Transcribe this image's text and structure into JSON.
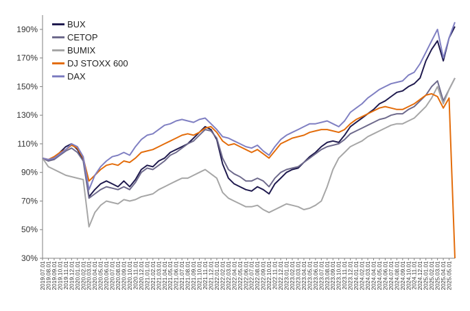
{
  "chart_data": {
    "type": "line",
    "title": "",
    "xlabel": "",
    "ylabel": "",
    "ylim": [
      30,
      200
    ],
    "y_tick_values": [
      30,
      50,
      70,
      90,
      110,
      130,
      150,
      170,
      190
    ],
    "y_tick_format": "{v}%",
    "x_tick_labels": [
      "2019.07.01",
      "2019.08.01",
      "2019.09.01",
      "2019.10.01",
      "2019.11.01",
      "2019.12.01",
      "2020.01.01",
      "2020.02.01",
      "2020.03.01",
      "2020.04.01",
      "2020.05.01",
      "2020.06.01",
      "2020.07.01",
      "2020.08.01",
      "2020.09.01",
      "2020.10.01",
      "2020.11.01",
      "2020.12.01",
      "2021.01.01",
      "2021.02.01",
      "2021.03.01",
      "2021.04.01",
      "2021.05.01",
      "2021.06.01",
      "2021.07.01",
      "2021.08.01",
      "2021.09.01",
      "2021.10.01",
      "2021.11.01",
      "2021.12.01",
      "2022.01.01",
      "2022.02.01",
      "2022.03.01",
      "2022.04.01",
      "2022.05.01",
      "2022.06.01",
      "2022.07.01",
      "2022.08.01",
      "2022.09.01",
      "2022.10.01",
      "2022.11.01",
      "2022.12.01",
      "2023.01.01",
      "2023.02.01",
      "2023.03.01",
      "2023.04.01",
      "2023.05.01",
      "2023.06.01",
      "2023.07.01",
      "2023.08.01",
      "2023.09.01",
      "2023.10.01",
      "2023.11.01",
      "2023.12.01",
      "2024.01.01",
      "2024.02.01",
      "2024.03.01",
      "2024.04.01",
      "2024.05.01",
      "2024.06.01",
      "2024.07.01",
      "2024.08.01",
      "2024.09.01",
      "2024.10.01",
      "2024.11.01",
      "2024.12.01",
      "2025.01.01",
      "2025.02.01",
      "2025.03.01",
      "2025.04.01",
      "2025.05.01"
    ],
    "x": [
      "2019.07.01",
      "2019.08.01",
      "2019.09.01",
      "2019.10.01",
      "2019.11.01",
      "2019.12.01",
      "2020.01.01",
      "2020.02.01",
      "2020.03.01",
      "2020.04.01",
      "2020.05.01",
      "2020.06.01",
      "2020.07.01",
      "2020.08.01",
      "2020.09.01",
      "2020.10.01",
      "2020.11.01",
      "2020.12.01",
      "2021.01.01",
      "2021.02.01",
      "2021.03.01",
      "2021.04.01",
      "2021.05.01",
      "2021.06.01",
      "2021.07.01",
      "2021.08.01",
      "2021.09.01",
      "2021.10.01",
      "2021.11.01",
      "2021.12.01",
      "2022.01.01",
      "2022.02.01",
      "2022.03.01",
      "2022.04.01",
      "2022.05.01",
      "2022.06.01",
      "2022.07.01",
      "2022.08.01",
      "2022.09.01",
      "2022.10.01",
      "2022.11.01",
      "2022.12.01",
      "2023.01.01",
      "2023.02.01",
      "2023.03.01",
      "2023.04.01",
      "2023.05.01",
      "2023.06.01",
      "2023.07.01",
      "2023.08.01",
      "2023.09.01",
      "2023.10.01",
      "2023.11.01",
      "2023.12.01",
      "2024.01.01",
      "2024.02.01",
      "2024.03.01",
      "2024.04.01",
      "2024.05.01",
      "2024.06.01",
      "2024.07.01",
      "2024.08.01",
      "2024.09.01",
      "2024.10.01",
      "2024.11.01",
      "2024.12.01",
      "2025.01.01",
      "2025.02.01",
      "2025.03.01",
      "2025.04.01",
      "2025.05.01",
      "2025.06.01"
    ],
    "grid": false,
    "legend_position": "top-left",
    "series": [
      {
        "name": "BUX",
        "color": "#1f1a4e",
        "values": [
          100,
          98,
          100,
          104,
          108,
          110,
          106,
          99,
          73,
          78,
          82,
          84,
          82,
          80,
          84,
          80,
          85,
          92,
          95,
          94,
          98,
          100,
          104,
          106,
          108,
          110,
          114,
          118,
          122,
          120,
          113,
          96,
          86,
          82,
          80,
          78,
          77,
          80,
          78,
          75,
          82,
          86,
          90,
          92,
          93,
          97,
          101,
          104,
          108,
          111,
          112,
          111,
          116,
          122,
          125,
          128,
          131,
          134,
          138,
          140,
          143,
          146,
          147,
          150,
          152,
          156,
          168,
          176,
          182,
          168,
          184,
          192
        ]
      },
      {
        "name": "CETOP",
        "color": "#6e6a8c",
        "values": [
          100,
          98,
          99,
          102,
          105,
          107,
          104,
          98,
          72,
          75,
          78,
          80,
          79,
          78,
          80,
          78,
          83,
          90,
          93,
          92,
          95,
          98,
          102,
          104,
          107,
          110,
          112,
          116,
          120,
          119,
          114,
          100,
          92,
          89,
          87,
          84,
          84,
          86,
          84,
          80,
          86,
          90,
          92,
          93,
          94,
          97,
          100,
          103,
          106,
          108,
          109,
          110,
          113,
          117,
          119,
          121,
          123,
          125,
          127,
          128,
          130,
          131,
          131,
          134,
          136,
          140,
          144,
          150,
          154,
          140,
          148,
          156
        ]
      },
      {
        "name": "BUMIX",
        "color": "#a6a6a6",
        "values": [
          100,
          94,
          92,
          90,
          88,
          87,
          86,
          85,
          52,
          62,
          67,
          70,
          69,
          68,
          71,
          70,
          71,
          73,
          74,
          75,
          78,
          80,
          82,
          84,
          86,
          86,
          88,
          90,
          92,
          89,
          86,
          76,
          72,
          70,
          68,
          66,
          66,
          67,
          64,
          62,
          64,
          66,
          68,
          67,
          66,
          64,
          65,
          67,
          70,
          80,
          92,
          100,
          104,
          108,
          110,
          112,
          115,
          117,
          119,
          121,
          123,
          124,
          124,
          126,
          128,
          132,
          136,
          142,
          150,
          138,
          148,
          156
        ]
      },
      {
        "name": "DJ STOXX 600",
        "color": "#e36c0a",
        "values": [
          100,
          99,
          101,
          104,
          106,
          109,
          107,
          100,
          84,
          88,
          92,
          95,
          96,
          95,
          98,
          97,
          100,
          104,
          105,
          106,
          108,
          110,
          112,
          114,
          116,
          117,
          116,
          118,
          121,
          122,
          118,
          112,
          109,
          110,
          108,
          106,
          104,
          106,
          103,
          100,
          105,
          110,
          112,
          114,
          115,
          116,
          118,
          119,
          120,
          120,
          119,
          118,
          120,
          124,
          127,
          129,
          131,
          133,
          135,
          136,
          135,
          134,
          134,
          136,
          138,
          141,
          144,
          145,
          143,
          135,
          142,
          30
        ]
      },
      {
        "name": "DAX",
        "color": "#7f7fc2",
        "values": [
          100,
          99,
          100,
          103,
          106,
          110,
          108,
          101,
          78,
          88,
          94,
          98,
          101,
          102,
          104,
          102,
          108,
          113,
          116,
          117,
          120,
          123,
          124,
          126,
          127,
          126,
          125,
          127,
          128,
          124,
          120,
          115,
          114,
          112,
          110,
          108,
          107,
          109,
          105,
          102,
          108,
          113,
          116,
          118,
          120,
          122,
          124,
          124,
          125,
          126,
          124,
          122,
          126,
          132,
          135,
          138,
          142,
          145,
          148,
          150,
          152,
          153,
          154,
          158,
          160,
          166,
          174,
          182,
          190,
          170,
          184,
          195
        ]
      }
    ]
  }
}
